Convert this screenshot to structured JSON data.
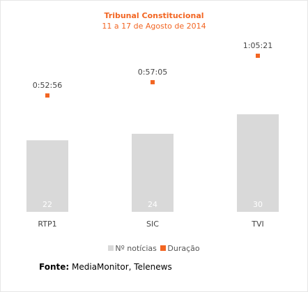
{
  "chart_data": {
    "type": "bar",
    "title": "Tribunal Constitucional",
    "subtitle": "11 a 17 de Agosto de 2014",
    "categories": [
      "RTP1",
      "SIC",
      "TVI"
    ],
    "series": [
      {
        "name": "Nº notícias",
        "values": [
          22,
          24,
          30
        ],
        "color": "#d9d9d9"
      },
      {
        "name": "Duração",
        "values": [
          "0:52:56",
          "0:57:05",
          "1:05:21"
        ],
        "seconds": [
          3176,
          3425,
          3921
        ],
        "color": "#f26522"
      }
    ],
    "legend_position": "bottom",
    "grid": false
  },
  "source": {
    "label": "Fonte:",
    "text": "MediaMonitor, Telenews"
  }
}
